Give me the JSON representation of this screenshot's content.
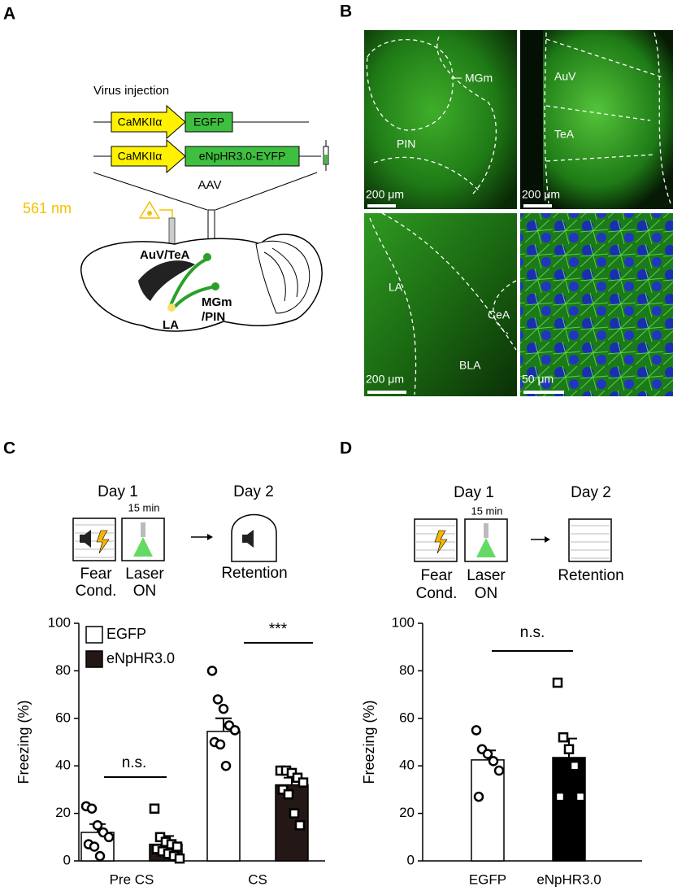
{
  "panel_a": {
    "label": "A",
    "title": "Virus injection",
    "constructs": [
      {
        "promoter": "CaMKIIα",
        "gene": "EGFP"
      },
      {
        "promoter": "CaMKIIα",
        "gene": "eNpHR3.0-EYFP"
      }
    ],
    "vector": "AAV",
    "laser": "561 nm",
    "regions": [
      "AuV/TeA",
      "MGm",
      "/PIN",
      "LA"
    ]
  },
  "panel_b": {
    "label": "B",
    "images": [
      {
        "regions": [
          "MGm",
          "PIN"
        ],
        "scale_bar": "200 μm"
      },
      {
        "regions": [
          "AuV",
          "TeA"
        ],
        "scale_bar": "200 μm"
      },
      {
        "regions": [
          "LA",
          "CeA",
          "BLA"
        ],
        "scale_bar": "200 μm"
      },
      {
        "regions": [],
        "scale_bar": "50 μm"
      }
    ]
  },
  "panel_c": {
    "label": "C",
    "day1": "Day 1",
    "duration": "15 min",
    "day2": "Day 2",
    "step1": [
      "Fear",
      "Cond."
    ],
    "step2": [
      "Laser",
      "ON"
    ],
    "step3": "Retention"
  },
  "panel_d": {
    "label": "D",
    "day1": "Day 1",
    "duration": "15 min",
    "day2": "Day 2",
    "step1": [
      "Fear",
      "Cond."
    ],
    "step2": [
      "Laser",
      "ON"
    ],
    "step3": "Retention"
  },
  "chart_data": [
    {
      "type": "grouped-bar",
      "ylabel": "Freezing (%)",
      "ylim": [
        0,
        100
      ],
      "yticks": [
        0,
        20,
        40,
        60,
        80,
        100
      ],
      "categories": [
        "Pre CS",
        "CS"
      ],
      "series": [
        {
          "name": "EGFP",
          "color": "#ffffff",
          "values": [
            12,
            54.5
          ],
          "errors": [
            3.5,
            5.5
          ],
          "points": [
            [
              23,
              22,
              15,
              12,
              10,
              7,
              6,
              2
            ],
            [
              80,
              68,
              64,
              57,
              55,
              50,
              49,
              40
            ]
          ]
        },
        {
          "name": "eNpHR3.0",
          "color": "#231815",
          "values": [
            7,
            32
          ],
          "errors": [
            3.5,
            3
          ],
          "points": [
            [
              22,
              10,
              8,
              7,
              6,
              5,
              4,
              3,
              2,
              1
            ],
            [
              38,
              38,
              37,
              35,
              33,
              30,
              28,
              20,
              15
            ]
          ]
        }
      ],
      "annotations": [
        "n.s.",
        "***"
      ],
      "legend": "upper left"
    },
    {
      "type": "bar",
      "ylabel": "Freezing (%)",
      "ylim": [
        0,
        100
      ],
      "yticks": [
        0,
        20,
        40,
        60,
        80,
        100
      ],
      "categories": [
        "EGFP",
        "eNpHR3.0"
      ],
      "series": [
        {
          "colors": [
            "#ffffff",
            "#000000"
          ],
          "values": [
            42.5,
            43.5
          ],
          "errors": [
            4,
            8
          ],
          "points": [
            [
              55,
              47,
              45,
              42,
              38,
              27
            ],
            [
              75,
              52,
              47,
              40,
              27,
              27
            ]
          ]
        }
      ],
      "annotations": [
        "n.s."
      ]
    }
  ]
}
